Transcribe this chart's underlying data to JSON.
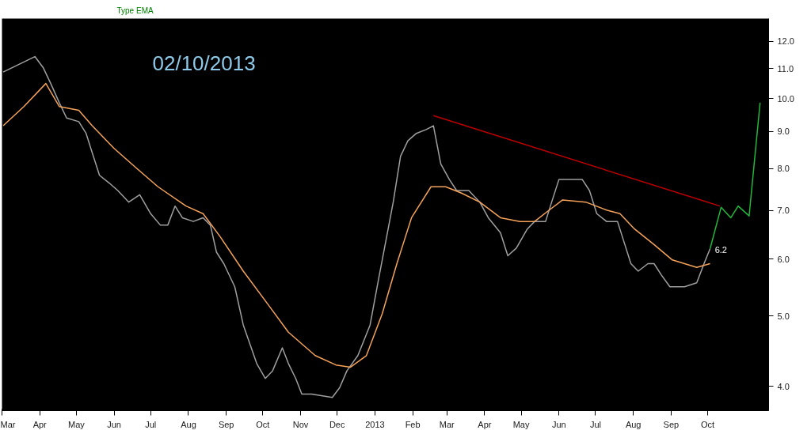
{
  "chart_data": {
    "type": "line",
    "title": "02/10/2013",
    "annotations": [
      "Type EMA",
      {
        "text": "6.2",
        "x": "2013-10-03",
        "y": 6.2
      }
    ],
    "log": "y",
    "grid": false,
    "marker": "none",
    "line_style": "solid",
    "xlim": [
      "2012-03-01",
      "2013-11-20"
    ],
    "ylim": [
      3.7,
      12.9
    ],
    "xticks": [
      {
        "value": "2012-03-01",
        "label": "Mar"
      },
      {
        "value": "2012-04-01",
        "label": "Apr"
      },
      {
        "value": "2012-05-01",
        "label": "May"
      },
      {
        "value": "2012-06-01",
        "label": "Jun"
      },
      {
        "value": "2012-07-01",
        "label": "Jul"
      },
      {
        "value": "2012-08-01",
        "label": "Aug"
      },
      {
        "value": "2012-09-01",
        "label": "Sep"
      },
      {
        "value": "2012-10-01",
        "label": "Oct"
      },
      {
        "value": "2012-11-01",
        "label": "Nov"
      },
      {
        "value": "2012-12-01",
        "label": "Dec"
      },
      {
        "value": "2013-01-01",
        "label": "2013"
      },
      {
        "value": "2013-02-01",
        "label": "Feb"
      },
      {
        "value": "2013-03-01",
        "label": "Mar"
      },
      {
        "value": "2013-04-01",
        "label": "Apr"
      },
      {
        "value": "2013-05-01",
        "label": "May"
      },
      {
        "value": "2013-06-01",
        "label": "Jun"
      },
      {
        "value": "2013-07-01",
        "label": "Jul"
      },
      {
        "value": "2013-08-01",
        "label": "Aug"
      },
      {
        "value": "2013-09-01",
        "label": "Sep"
      },
      {
        "value": "2013-10-01",
        "label": "Oct"
      }
    ],
    "yticks": [
      {
        "value": 4,
        "label": "4.0"
      },
      {
        "value": 5,
        "label": "5.0"
      },
      {
        "value": 6,
        "label": "6.0"
      },
      {
        "value": 7,
        "label": "7.0"
      },
      {
        "value": 8,
        "label": "8.0"
      },
      {
        "value": 9,
        "label": "9.0"
      },
      {
        "value": 10,
        "label": "10.0"
      },
      {
        "value": 11,
        "label": "11.0"
      },
      {
        "value": 12,
        "label": "12.0"
      }
    ],
    "series": [
      {
        "color": "#a0a0a0",
        "x": [
          "2012-03-02",
          "2012-03-15",
          "2012-03-28",
          "2012-04-04",
          "2012-04-10",
          "2012-04-17",
          "2012-04-23",
          "2012-05-03",
          "2012-05-09",
          "2012-05-14",
          "2012-05-20",
          "2012-05-28",
          "2012-06-04",
          "2012-06-13",
          "2012-06-22",
          "2012-07-01",
          "2012-07-09",
          "2012-07-15",
          "2012-07-21",
          "2012-07-27",
          "2012-08-05",
          "2012-08-13",
          "2012-08-19",
          "2012-08-24",
          "2012-08-30",
          "2012-09-08",
          "2012-09-15",
          "2012-09-26",
          "2012-10-03",
          "2012-10-09",
          "2012-10-17",
          "2012-10-22",
          "2012-10-28",
          "2012-11-02",
          "2012-11-10",
          "2012-11-19",
          "2012-11-27",
          "2012-12-03",
          "2012-12-09",
          "2012-12-18",
          "2012-12-28",
          "2013-01-04",
          "2013-01-10",
          "2013-01-16",
          "2013-01-22",
          "2013-01-28",
          "2013-02-04",
          "2013-02-12",
          "2013-02-18",
          "2013-02-24",
          "2013-03-03",
          "2013-03-09",
          "2013-03-19",
          "2013-03-28",
          "2013-04-04",
          "2013-04-14",
          "2013-04-20",
          "2013-04-27",
          "2013-05-06",
          "2013-05-12",
          "2013-05-21",
          "2013-05-26",
          "2013-06-01",
          "2013-06-10",
          "2013-06-20",
          "2013-06-26",
          "2013-07-02",
          "2013-07-10",
          "2013-07-19",
          "2013-07-24",
          "2013-07-30",
          "2013-08-05",
          "2013-08-13",
          "2013-08-18",
          "2013-08-24",
          "2013-08-31",
          "2013-09-12",
          "2013-09-22",
          "2013-09-28",
          "2013-10-03"
        ],
        "values": [
          10.88,
          11.15,
          11.43,
          11.02,
          10.49,
          9.87,
          9.4,
          9.29,
          8.95,
          8.42,
          7.83,
          7.64,
          7.46,
          7.19,
          7.36,
          6.93,
          6.68,
          6.68,
          7.1,
          6.84,
          6.76,
          6.84,
          6.68,
          6.13,
          5.91,
          5.49,
          4.86,
          4.3,
          4.1,
          4.2,
          4.52,
          4.3,
          4.1,
          3.9,
          3.9,
          3.88,
          3.86,
          3.98,
          4.2,
          4.41,
          4.86,
          5.63,
          6.36,
          7.19,
          8.32,
          8.74,
          8.95,
          9.06,
          9.17,
          8.12,
          7.73,
          7.46,
          7.46,
          7.19,
          6.84,
          6.52,
          6.06,
          6.21,
          6.6,
          6.76,
          6.76,
          7.19,
          7.73,
          7.73,
          7.73,
          7.46,
          6.93,
          6.76,
          6.76,
          6.36,
          5.91,
          5.77,
          5.91,
          5.91,
          5.7,
          5.49,
          5.49,
          5.56,
          5.91,
          6.2
        ]
      },
      {
        "color": "#f5a35a",
        "x": [
          "2012-03-02",
          "2012-03-19",
          "2012-04-06",
          "2012-04-17",
          "2012-05-03",
          "2012-05-14",
          "2012-06-01",
          "2012-06-19",
          "2012-07-07",
          "2012-07-30",
          "2012-08-13",
          "2012-08-27",
          "2012-09-15",
          "2012-10-06",
          "2012-10-22",
          "2012-11-13",
          "2012-11-30",
          "2012-12-12",
          "2012-12-25",
          "2013-01-07",
          "2013-01-19",
          "2013-01-31",
          "2013-02-16",
          "2013-02-28",
          "2013-03-13",
          "2013-03-28",
          "2013-04-14",
          "2013-04-30",
          "2013-05-12",
          "2013-05-24",
          "2013-06-04",
          "2013-06-23",
          "2013-07-10",
          "2013-07-21",
          "2013-08-02",
          "2013-08-18",
          "2013-09-02",
          "2013-09-22",
          "2013-10-03"
        ],
        "values": [
          9.17,
          9.75,
          10.49,
          9.75,
          9.63,
          9.17,
          8.53,
          8.02,
          7.55,
          7.1,
          6.93,
          6.44,
          5.77,
          5.17,
          4.75,
          4.41,
          4.28,
          4.25,
          4.41,
          5.04,
          5.91,
          6.84,
          7.55,
          7.55,
          7.4,
          7.19,
          6.84,
          6.76,
          6.76,
          7.01,
          7.24,
          7.19,
          7.01,
          6.93,
          6.6,
          6.28,
          5.98,
          5.84,
          5.91
        ]
      },
      {
        "color": "#c00000",
        "x": [
          "2013-02-18",
          "2013-10-11"
        ],
        "values": [
          9.47,
          7.1
        ]
      },
      {
        "color": "#22b83a",
        "x": [
          "2013-10-03",
          "2013-10-12",
          "2013-10-20",
          "2013-10-26",
          "2013-11-04",
          "2013-11-13"
        ],
        "values": [
          6.2,
          7.07,
          6.84,
          7.1,
          6.88,
          9.87
        ]
      }
    ]
  }
}
